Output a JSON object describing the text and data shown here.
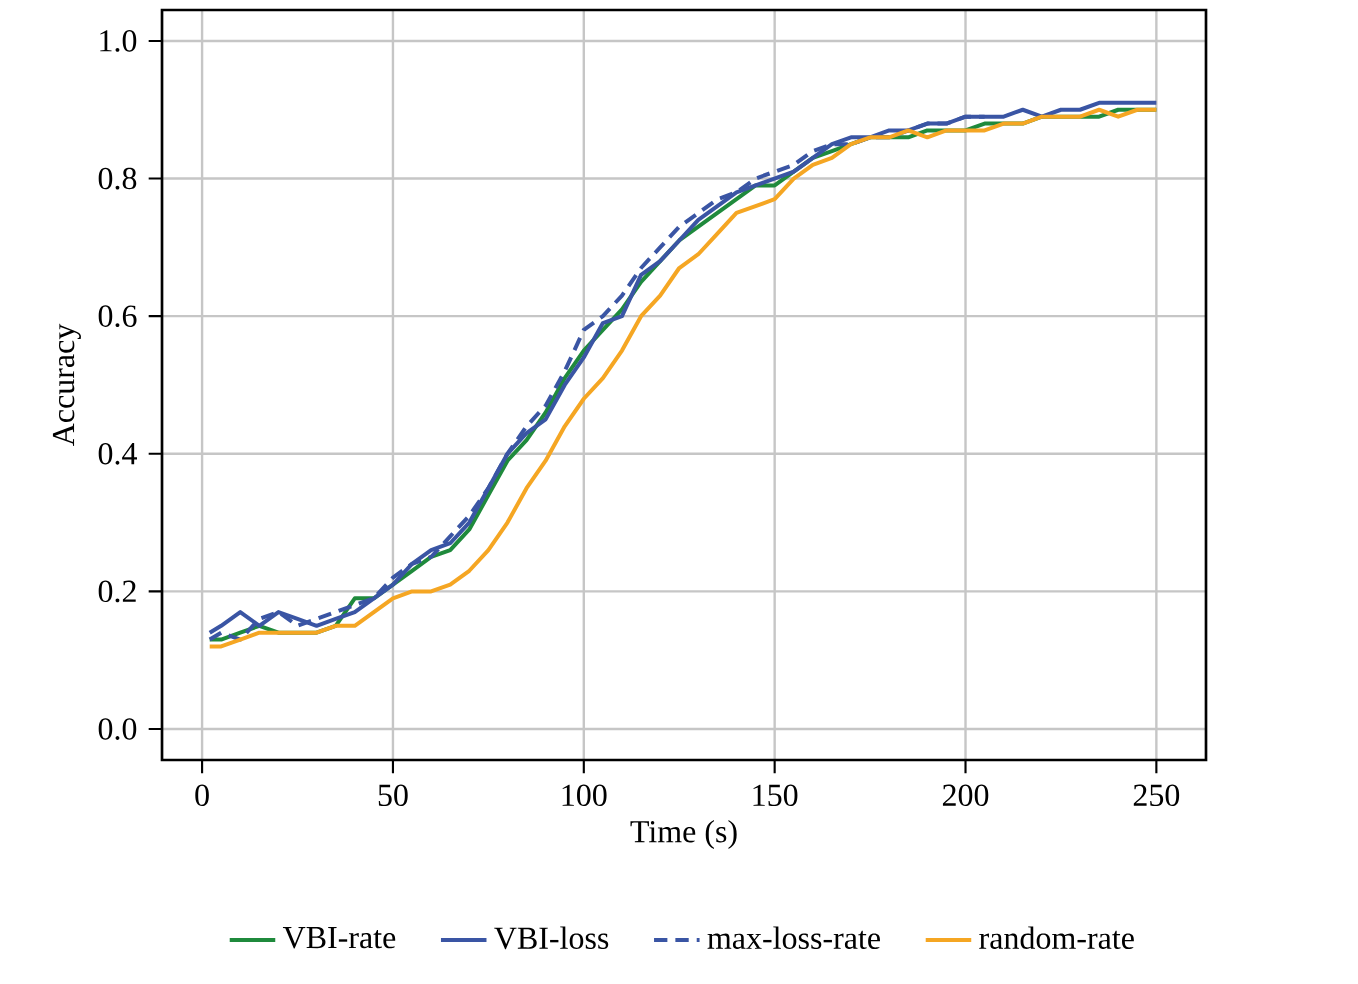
{
  "chart_data": {
    "type": "line",
    "xlabel": "Time (s)",
    "ylabel": "Accuracy",
    "xlim": [
      -10.5,
      263
    ],
    "ylim": [
      -0.045,
      1.045
    ],
    "xticks": [
      0,
      50,
      100,
      150,
      200,
      250
    ],
    "yticks": [
      {
        "value": 0,
        "label": "0.0"
      },
      {
        "value": 0.2,
        "label": "0.2"
      },
      {
        "value": 0.4,
        "label": "0.4"
      },
      {
        "value": 0.6,
        "label": "0.6"
      },
      {
        "value": 0.8,
        "label": "0.8"
      },
      {
        "value": 1,
        "label": "1.0"
      }
    ],
    "grid": true,
    "legend": "bottom",
    "series": [
      {
        "name": "VBI-rate",
        "color": "#1f8a3c",
        "line_style": "solid",
        "x": [
          2,
          5,
          10,
          15,
          20,
          25,
          30,
          35,
          40,
          45,
          50,
          55,
          60,
          65,
          70,
          75,
          80,
          85,
          90,
          95,
          100,
          105,
          110,
          115,
          120,
          125,
          130,
          135,
          140,
          145,
          150,
          155,
          160,
          165,
          170,
          175,
          180,
          185,
          190,
          195,
          200,
          205,
          210,
          215,
          220,
          225,
          230,
          235,
          240,
          245,
          250
        ],
        "values": [
          0.13,
          0.13,
          0.14,
          0.15,
          0.14,
          0.14,
          0.14,
          0.15,
          0.19,
          0.19,
          0.21,
          0.23,
          0.25,
          0.26,
          0.29,
          0.34,
          0.39,
          0.42,
          0.46,
          0.51,
          0.55,
          0.58,
          0.61,
          0.65,
          0.68,
          0.71,
          0.73,
          0.75,
          0.77,
          0.79,
          0.79,
          0.81,
          0.83,
          0.84,
          0.85,
          0.86,
          0.86,
          0.86,
          0.87,
          0.87,
          0.87,
          0.88,
          0.88,
          0.88,
          0.89,
          0.89,
          0.89,
          0.89,
          0.9,
          0.9,
          0.9
        ]
      },
      {
        "name": "VBI-loss",
        "color": "#3a55a4",
        "line_style": "solid",
        "x": [
          2,
          5,
          10,
          15,
          20,
          25,
          30,
          35,
          40,
          45,
          50,
          55,
          60,
          65,
          70,
          75,
          80,
          85,
          90,
          95,
          100,
          105,
          110,
          115,
          120,
          125,
          130,
          135,
          140,
          145,
          150,
          155,
          160,
          165,
          170,
          175,
          180,
          185,
          190,
          195,
          200,
          205,
          210,
          215,
          220,
          225,
          230,
          235,
          240,
          245,
          250
        ],
        "values": [
          0.14,
          0.15,
          0.17,
          0.15,
          0.17,
          0.16,
          0.15,
          0.16,
          0.17,
          0.19,
          0.21,
          0.24,
          0.26,
          0.27,
          0.3,
          0.35,
          0.4,
          0.43,
          0.45,
          0.5,
          0.54,
          0.59,
          0.6,
          0.66,
          0.68,
          0.71,
          0.74,
          0.76,
          0.78,
          0.79,
          0.8,
          0.81,
          0.83,
          0.85,
          0.86,
          0.86,
          0.87,
          0.87,
          0.88,
          0.88,
          0.89,
          0.89,
          0.89,
          0.9,
          0.89,
          0.9,
          0.9,
          0.91,
          0.91,
          0.91,
          0.91
        ]
      },
      {
        "name": "max-loss-rate",
        "color": "#3a55a4",
        "line_style": "dashed",
        "x": [
          2,
          5,
          10,
          15,
          20,
          25,
          30,
          35,
          40,
          45,
          50,
          55,
          60,
          65,
          70,
          75,
          80,
          85,
          90,
          95,
          100,
          105,
          110,
          115,
          120,
          125,
          130,
          135,
          140,
          145,
          150,
          155,
          160,
          165,
          170,
          175,
          180,
          185,
          190,
          195,
          200,
          205
        ],
        "values": [
          0.13,
          0.14,
          0.13,
          0.16,
          0.17,
          0.15,
          0.16,
          0.17,
          0.18,
          0.19,
          0.22,
          0.24,
          0.25,
          0.28,
          0.31,
          0.35,
          0.4,
          0.44,
          0.47,
          0.52,
          0.58,
          0.6,
          0.63,
          0.67,
          0.7,
          0.73,
          0.75,
          0.77,
          0.78,
          0.8,
          0.81,
          0.82,
          0.84,
          0.85,
          0.85,
          0.86,
          0.86,
          0.87,
          0.88,
          0.88,
          0.89,
          0.89
        ]
      },
      {
        "name": "random-rate",
        "color": "#f5a623",
        "line_style": "solid",
        "x": [
          2,
          5,
          10,
          15,
          20,
          25,
          30,
          35,
          40,
          45,
          50,
          55,
          60,
          65,
          70,
          75,
          80,
          85,
          90,
          95,
          100,
          105,
          110,
          115,
          120,
          125,
          130,
          135,
          140,
          145,
          150,
          155,
          160,
          165,
          170,
          175,
          180,
          185,
          190,
          195,
          200,
          205,
          210,
          215,
          220,
          225,
          230,
          235,
          240,
          245,
          250
        ],
        "values": [
          0.12,
          0.12,
          0.13,
          0.14,
          0.14,
          0.14,
          0.14,
          0.15,
          0.15,
          0.17,
          0.19,
          0.2,
          0.2,
          0.21,
          0.23,
          0.26,
          0.3,
          0.35,
          0.39,
          0.44,
          0.48,
          0.51,
          0.55,
          0.6,
          0.63,
          0.67,
          0.69,
          0.72,
          0.75,
          0.76,
          0.77,
          0.8,
          0.82,
          0.83,
          0.85,
          0.86,
          0.86,
          0.87,
          0.86,
          0.87,
          0.87,
          0.87,
          0.88,
          0.88,
          0.89,
          0.89,
          0.89,
          0.9,
          0.89,
          0.9,
          0.9
        ]
      }
    ]
  }
}
